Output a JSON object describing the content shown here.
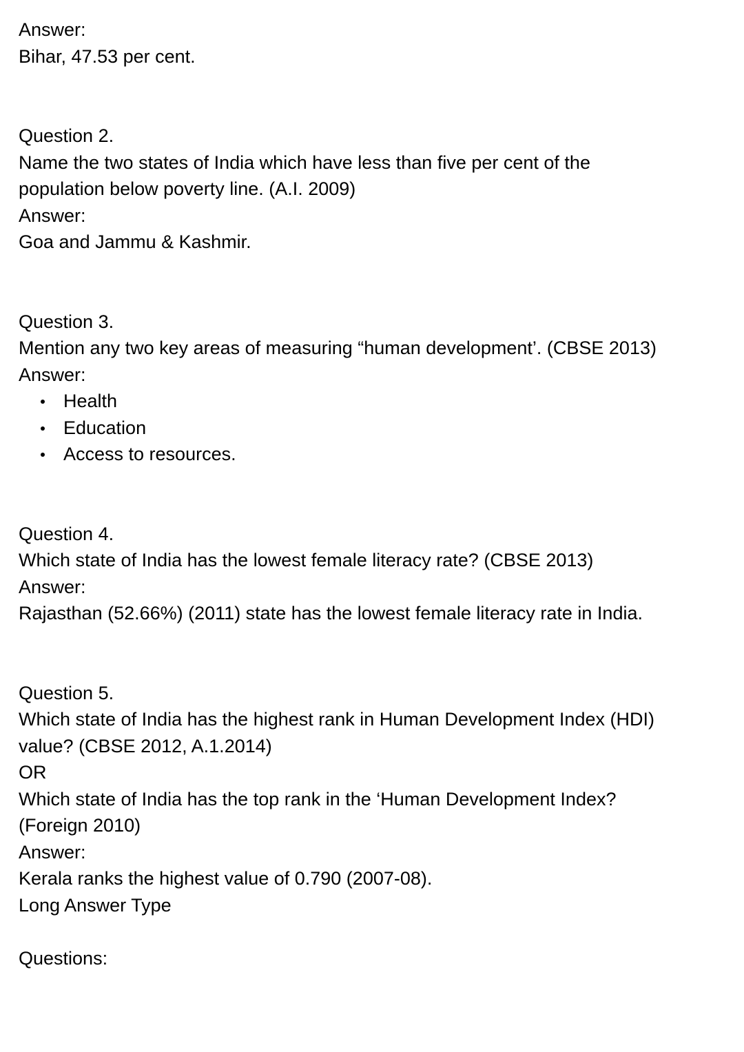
{
  "q1": {
    "answer_label": "Answer:",
    "answer": "Bihar, 47.53 per cent."
  },
  "q2": {
    "label": "Question 2.",
    "text_lines": [
      "Name the two states of India which have less than five per cent of the",
      "population below poverty line. (A.I. 2009)"
    ],
    "answer_label": "Answer:",
    "answer": "Goa and Jammu & Kashmir."
  },
  "q3": {
    "label": "Question 3.",
    "text": "Mention any two key areas of measuring “human development’. (CBSE 2013)",
    "answer_label": "Answer:",
    "bullets": [
      "Health",
      "Education",
      "Access to resources."
    ]
  },
  "q4": {
    "label": "Question 4.",
    "text": "Which state of India has the lowest female literacy rate? (CBSE 2013)",
    "answer_label": "Answer:",
    "answer": "Rajasthan (52.66%) (2011) state has the lowest female literacy rate in India."
  },
  "q5": {
    "label": "Question 5.",
    "text_lines": [
      "Which state of India has the highest rank in Human Development Index (HDI)",
      "value? (CBSE 2012, A.1.2014)"
    ],
    "or_label": "OR",
    "alt_text_lines": [
      "Which state of India has the top rank in the ‘Human Development Index?",
      "(Foreign 2010)"
    ],
    "answer_label": "Answer:",
    "answer": "Kerala ranks the highest value of 0.790 (2007-08)."
  },
  "section": {
    "title": "Long Answer Type",
    "subtitle": "Questions:"
  }
}
